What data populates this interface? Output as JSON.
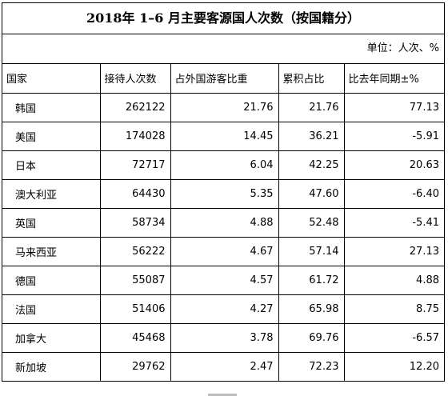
{
  "title": "2018年 1–6 月主要客源国人次数（按国籍分）",
  "unit": "单位：人次、%",
  "headers": [
    "国家",
    "接待人次数",
    "占外国游客比重",
    "累积占比",
    "比去年同期±%"
  ],
  "rows": [
    {
      "country": "韩国",
      "visitors": "262122",
      "share": "21.76",
      "cumulative": "21.76",
      "yoy": "77.13"
    },
    {
      "country": "美国",
      "visitors": "174028",
      "share": "14.45",
      "cumulative": "36.21",
      "yoy": "-5.91"
    },
    {
      "country": "日本",
      "visitors": "72717",
      "share": "6.04",
      "cumulative": "42.25",
      "yoy": "20.63"
    },
    {
      "country": "澳大利亚",
      "visitors": "64430",
      "share": "5.35",
      "cumulative": "47.60",
      "yoy": "-6.40"
    },
    {
      "country": "英国",
      "visitors": "58734",
      "share": "4.88",
      "cumulative": "52.48",
      "yoy": "-5.41"
    },
    {
      "country": "马来西亚",
      "visitors": "56222",
      "share": "4.67",
      "cumulative": "57.14",
      "yoy": "27.13"
    },
    {
      "country": "德国",
      "visitors": "55087",
      "share": "4.57",
      "cumulative": "61.72",
      "yoy": "4.88"
    },
    {
      "country": "法国",
      "visitors": "51406",
      "share": "4.27",
      "cumulative": "65.98",
      "yoy": "8.75"
    },
    {
      "country": "加拿大",
      "visitors": "45468",
      "share": "3.78",
      "cumulative": "69.76",
      "yoy": "-6.57"
    },
    {
      "country": "新加坡",
      "visitors": "29762",
      "share": "2.47",
      "cumulative": "72.23",
      "yoy": "12.20"
    }
  ]
}
